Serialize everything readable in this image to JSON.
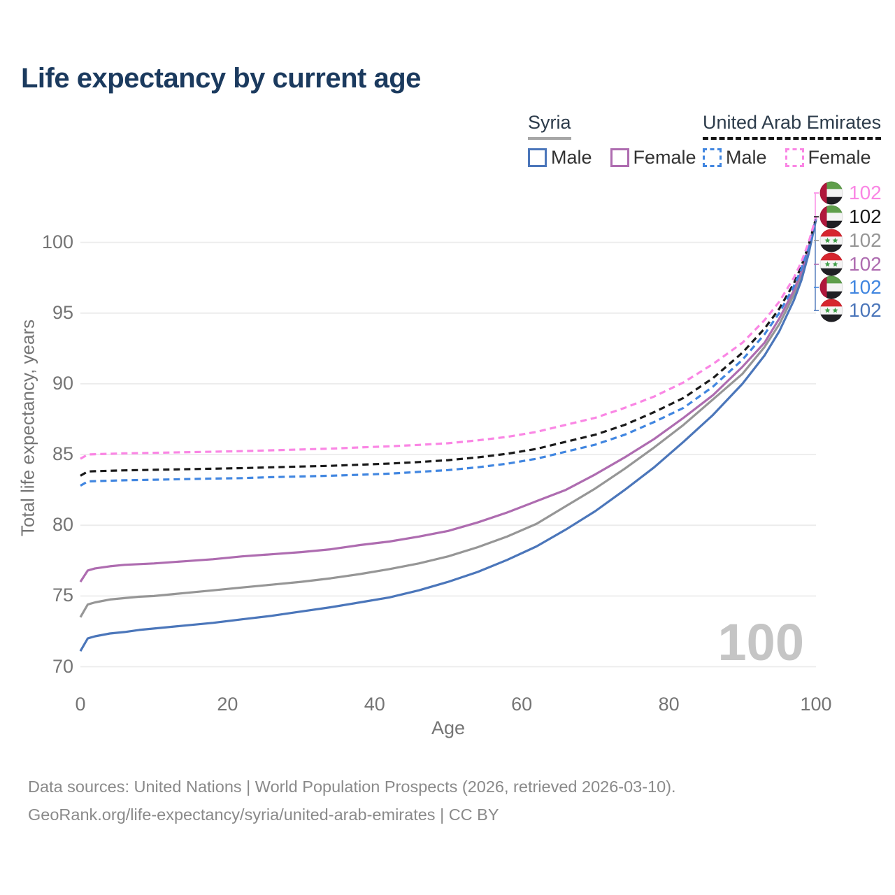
{
  "page": {
    "title": "Life expectancy by current age"
  },
  "legend": {
    "groups": [
      {
        "label": "Syria",
        "underline_style": "solid",
        "underline_color": "#a6a6a6",
        "items": [
          {
            "label": "Male",
            "color": "#4b76ba",
            "style": "solid"
          },
          {
            "label": "Female",
            "color": "#ae6cb0",
            "style": "solid"
          }
        ]
      },
      {
        "label": "United Arab Emirates",
        "underline_style": "dashed",
        "underline_color": "#141414",
        "items": [
          {
            "label": "Male",
            "color": "#4186e0",
            "style": "dashed"
          },
          {
            "label": "Female",
            "color": "#fa86e4",
            "style": "dashed"
          }
        ]
      }
    ]
  },
  "axes": {
    "x": {
      "label": "Age",
      "ticks": [
        0,
        20,
        40,
        60,
        80,
        100
      ]
    },
    "y": {
      "label": "Total life expectancy, years",
      "ticks": [
        70,
        75,
        80,
        85,
        90,
        95,
        100
      ]
    }
  },
  "watermark": "100",
  "footer": {
    "line1": "Data sources: United Nations | World Population Prospects (2026, retrieved 2026-03-10).",
    "line2": "GeoRank.org/life-expectancy/syria/united-arab-emirates | CC BY"
  },
  "chart_data": {
    "type": "line",
    "title": "Life expectancy by current age",
    "xlabel": "Age",
    "ylabel": "Total life expectancy, years",
    "xlim": [
      0,
      100
    ],
    "ylim": [
      69,
      103
    ],
    "x_ticks": [
      0,
      20,
      40,
      60,
      80,
      100
    ],
    "y_ticks": [
      70,
      75,
      80,
      85,
      90,
      95,
      100
    ],
    "grid": "horizontal",
    "legend_position": "top-right",
    "ages": [
      0,
      1,
      2,
      4,
      6,
      8,
      10,
      14,
      18,
      22,
      26,
      30,
      34,
      38,
      42,
      46,
      50,
      54,
      58,
      62,
      66,
      70,
      74,
      78,
      82,
      86,
      90,
      93,
      95,
      97,
      98,
      99,
      100
    ],
    "series": [
      {
        "name": "United Arab Emirates — Female",
        "country": "United Arab Emirates",
        "sex": "Female",
        "color": "#fa86e4",
        "dashed": true,
        "flag": "are",
        "end_label": "102",
        "values": [
          84.7,
          85,
          85.02,
          85.05,
          85.08,
          85.1,
          85.12,
          85.16,
          85.2,
          85.24,
          85.3,
          85.36,
          85.42,
          85.5,
          85.58,
          85.68,
          85.8,
          86,
          86.25,
          86.6,
          87.1,
          87.6,
          88.3,
          89.1,
          90.1,
          91.4,
          92.9,
          94.5,
          95.8,
          97.5,
          98.6,
          100,
          101.8
        ]
      },
      {
        "name": "United Arab Emirates — Both sexes",
        "country": "United Arab Emirates",
        "sex": "Both sexes",
        "color": "#1a1a1a",
        "dashed": true,
        "flag": "are",
        "end_label": "102",
        "values": [
          83.5,
          83.8,
          83.82,
          83.85,
          83.88,
          83.9,
          83.92,
          83.96,
          84,
          84.04,
          84.1,
          84.15,
          84.2,
          84.28,
          84.36,
          84.47,
          84.6,
          84.8,
          85.05,
          85.4,
          85.9,
          86.4,
          87.1,
          88,
          89,
          90.4,
          92.2,
          93.9,
          95.3,
          97.1,
          98.3,
          99.8,
          101.7
        ]
      },
      {
        "name": "Syria — Both sexes",
        "country": "Syria",
        "sex": "Both sexes",
        "color": "#969696",
        "dashed": false,
        "flag": "syr",
        "end_label": "102",
        "values": [
          73.5,
          74.4,
          74.55,
          74.75,
          74.85,
          74.95,
          75,
          75.2,
          75.4,
          75.6,
          75.8,
          76,
          76.25,
          76.55,
          76.9,
          77.3,
          77.8,
          78.45,
          79.2,
          80.1,
          81.35,
          82.6,
          84,
          85.5,
          87.1,
          88.9,
          90.7,
          92.6,
          94.2,
          96.3,
          97.6,
          99.4,
          101.7
        ]
      },
      {
        "name": "Syria — Female",
        "country": "Syria",
        "sex": "Female",
        "color": "#ae6cb0",
        "dashed": false,
        "flag": "syr",
        "end_label": "102",
        "values": [
          76,
          76.8,
          76.95,
          77.1,
          77.2,
          77.25,
          77.3,
          77.45,
          77.6,
          77.8,
          77.95,
          78.1,
          78.3,
          78.6,
          78.85,
          79.2,
          79.6,
          80.2,
          80.9,
          81.7,
          82.5,
          83.6,
          84.8,
          86.1,
          87.6,
          89.2,
          91.2,
          92.9,
          94.6,
          96.6,
          97.9,
          99.6,
          101.7
        ]
      },
      {
        "name": "United Arab Emirates — Male",
        "country": "United Arab Emirates",
        "sex": "Male",
        "color": "#4186e0",
        "dashed": true,
        "flag": "are",
        "end_label": "102",
        "values": [
          82.8,
          83.1,
          83.12,
          83.15,
          83.18,
          83.2,
          83.22,
          83.26,
          83.3,
          83.33,
          83.4,
          83.45,
          83.5,
          83.57,
          83.65,
          83.77,
          83.9,
          84.1,
          84.35,
          84.7,
          85.2,
          85.7,
          86.4,
          87.3,
          88.3,
          89.8,
          91.7,
          93.5,
          95,
          96.9,
          98.1,
          99.7,
          101.7
        ]
      },
      {
        "name": "Syria — Male",
        "country": "Syria",
        "sex": "Male",
        "color": "#4b76ba",
        "dashed": false,
        "flag": "syr",
        "end_label": "102",
        "values": [
          71.1,
          72,
          72.15,
          72.35,
          72.45,
          72.6,
          72.7,
          72.9,
          73.1,
          73.35,
          73.6,
          73.9,
          74.2,
          74.55,
          74.9,
          75.4,
          76,
          76.7,
          77.55,
          78.5,
          79.7,
          81,
          82.5,
          84.1,
          85.9,
          87.8,
          90,
          92,
          93.7,
          95.9,
          97.3,
          99.2,
          101.6
        ]
      }
    ]
  }
}
